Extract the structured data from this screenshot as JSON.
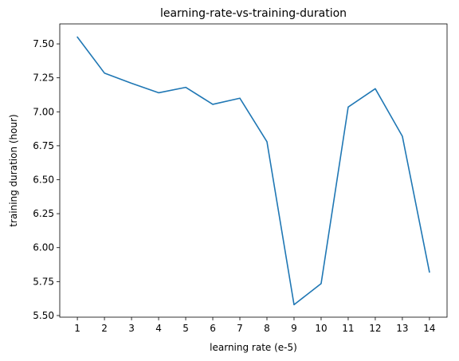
{
  "chart_data": {
    "type": "line",
    "title": "learning-rate-vs-training-duration",
    "xlabel": "learning rate (e-5)",
    "ylabel": "training duration (hour)",
    "x": [
      1,
      2,
      3,
      4,
      5,
      6,
      7,
      8,
      9,
      10,
      11,
      12,
      13,
      14
    ],
    "series": [
      {
        "values": [
          7.55,
          7.285,
          7.21,
          7.14,
          7.18,
          7.055,
          7.1,
          6.78,
          5.58,
          5.735,
          7.035,
          7.17,
          6.82,
          5.82
        ],
        "color": "#1f77b4"
      }
    ],
    "xticks": [
      "1",
      "2",
      "3",
      "4",
      "5",
      "6",
      "7",
      "8",
      "9",
      "10",
      "11",
      "12",
      "13",
      "14"
    ],
    "yticks": [
      "5.50",
      "5.75",
      "6.00",
      "6.25",
      "6.50",
      "6.75",
      "7.00",
      "7.25",
      "7.50"
    ],
    "ytick_values": [
      5.5,
      5.75,
      6.0,
      6.25,
      6.5,
      6.75,
      7.0,
      7.25,
      7.5
    ],
    "xlim": [
      0.35,
      14.65
    ],
    "ylim": [
      5.488,
      7.647
    ],
    "grid": false,
    "legend": false
  }
}
